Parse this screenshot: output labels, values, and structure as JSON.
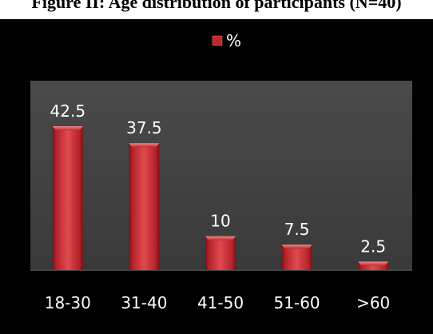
{
  "figure": {
    "caption": "Figure II: Age distribution of participants (N=40)"
  },
  "chart_data": {
    "type": "bar",
    "title": "",
    "xlabel": "",
    "ylabel": "",
    "categories": [
      "18-30",
      "31-40",
      "41-50",
      "51-60",
      ">60"
    ],
    "series": [
      {
        "name": "%",
        "values": [
          42.5,
          37.5,
          10,
          7.5,
          2.5
        ]
      }
    ],
    "value_labels": [
      "42.5",
      "37.5",
      "10",
      "7.5",
      "2.5"
    ],
    "ylim": [
      0,
      50
    ],
    "grid": false,
    "legend_position": "top",
    "plot_background": "#404040",
    "chart_background": "#000000",
    "bar_color": "#c0282c",
    "text_color": "#ffffff"
  }
}
